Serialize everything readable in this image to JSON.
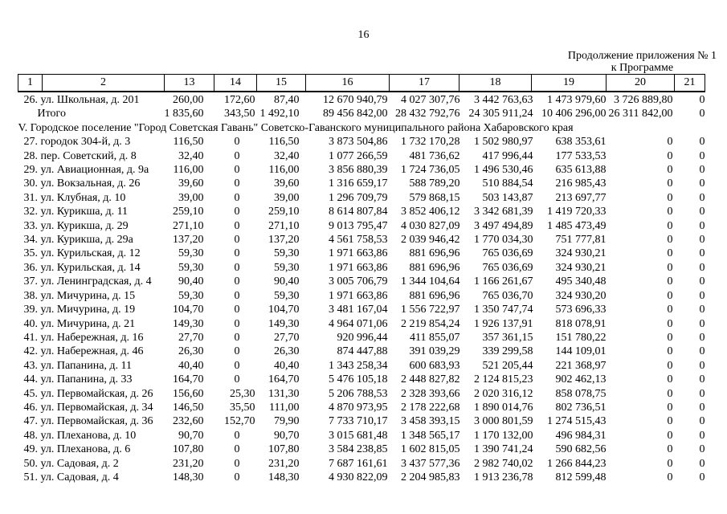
{
  "page": {
    "number": "16",
    "continuation_line1": "Продолжение приложения № 1",
    "continuation_line2": "к Программе"
  },
  "table": {
    "header": [
      "1",
      "2",
      "13",
      "14",
      "15",
      "16",
      "17",
      "18",
      "19",
      "20",
      "21"
    ],
    "rows": [
      {
        "label": "26. ул. Школьная, д. 201",
        "values": [
          "260,00",
          "172,60",
          "87,40",
          "12 670 940,79",
          "4 027 307,76",
          "3 442 763,63",
          "1 473 979,60",
          "3 726 889,80",
          "0"
        ]
      },
      {
        "label": "Итого",
        "indent": true,
        "values": [
          "1 835,60",
          "343,50",
          "1 492,10",
          "89 456 842,00",
          "28 432 792,76",
          "24 305 911,24",
          "10 406 296,00",
          "26 311 842,00",
          "0"
        ]
      },
      {
        "section": "V. Городское поселение \"Город Советская Гавань\" Советско-Гаванского муниципального района Хабаровского края"
      },
      {
        "label": "27. городок 304-й, д. 3",
        "values": [
          "116,50",
          "0",
          "116,50",
          "3 873 504,86",
          "1 732 170,28",
          "1 502 980,97",
          "638 353,61",
          "0",
          "0"
        ]
      },
      {
        "label": "28. пер. Советский, д. 8",
        "values": [
          "32,40",
          "0",
          "32,40",
          "1 077 266,59",
          "481 736,62",
          "417 996,44",
          "177 533,53",
          "0",
          "0"
        ]
      },
      {
        "label": "29. ул. Авиационная, д. 9а",
        "values": [
          "116,00",
          "0",
          "116,00",
          "3 856 880,39",
          "1 724 736,05",
          "1 496 530,46",
          "635 613,88",
          "0",
          "0"
        ]
      },
      {
        "label": "30. ул. Вокзальная, д. 26",
        "values": [
          "39,60",
          "0",
          "39,60",
          "1 316 659,17",
          "588 789,20",
          "510 884,54",
          "216 985,43",
          "0",
          "0"
        ]
      },
      {
        "label": "31. ул. Клубная, д. 10",
        "values": [
          "39,00",
          "0",
          "39,00",
          "1 296 709,79",
          "579 868,15",
          "503 143,87",
          "213 697,77",
          "0",
          "0"
        ]
      },
      {
        "label": "32. ул. Курикша, д. 11",
        "values": [
          "259,10",
          "0",
          "259,10",
          "8 614 807,84",
          "3 852 406,12",
          "3 342 681,39",
          "1 419 720,33",
          "0",
          "0"
        ]
      },
      {
        "label": "33. ул. Курикша, д. 29",
        "values": [
          "271,10",
          "0",
          "271,10",
          "9 013 795,47",
          "4 030 827,09",
          "3 497 494,89",
          "1 485 473,49",
          "0",
          "0"
        ]
      },
      {
        "label": "34. ул. Курикша, д. 29а",
        "values": [
          "137,20",
          "0",
          "137,20",
          "4 561 758,53",
          "2 039 946,42",
          "1 770 034,30",
          "751 777,81",
          "0",
          "0"
        ]
      },
      {
        "label": "35. ул. Курильская, д. 12",
        "values": [
          "59,30",
          "0",
          "59,30",
          "1 971 663,86",
          "881 696,96",
          "765 036,69",
          "324 930,21",
          "0",
          "0"
        ]
      },
      {
        "label": "36. ул. Курильская, д. 14",
        "values": [
          "59,30",
          "0",
          "59,30",
          "1 971 663,86",
          "881 696,96",
          "765 036,69",
          "324 930,21",
          "0",
          "0"
        ]
      },
      {
        "label": "37. ул. Ленинградская, д. 4",
        "values": [
          "90,40",
          "0",
          "90,40",
          "3 005 706,79",
          "1 344 104,64",
          "1 166 261,67",
          "495 340,48",
          "0",
          "0"
        ]
      },
      {
        "label": "38. ул. Мичурина, д. 15",
        "values": [
          "59,30",
          "0",
          "59,30",
          "1 971 663,86",
          "881 696,96",
          "765 036,70",
          "324 930,20",
          "0",
          "0"
        ]
      },
      {
        "label": "39. ул. Мичурина, д. 19",
        "values": [
          "104,70",
          "0",
          "104,70",
          "3 481 167,04",
          "1 556 722,97",
          "1 350 747,74",
          "573 696,33",
          "0",
          "0"
        ]
      },
      {
        "label": "40. ул. Мичурина, д. 21",
        "values": [
          "149,30",
          "0",
          "149,30",
          "4 964 071,06",
          "2 219 854,24",
          "1 926 137,91",
          "818 078,91",
          "0",
          "0"
        ]
      },
      {
        "label": "41. ул. Набережная, д. 16",
        "values": [
          "27,70",
          "0",
          "27,70",
          "920 996,44",
          "411 855,07",
          "357 361,15",
          "151 780,22",
          "0",
          "0"
        ]
      },
      {
        "label": "42. ул. Набережная, д. 46",
        "values": [
          "26,30",
          "0",
          "26,30",
          "874 447,88",
          "391 039,29",
          "339 299,58",
          "144 109,01",
          "0",
          "0"
        ]
      },
      {
        "label": "43. ул. Папанина, д. 11",
        "values": [
          "40,40",
          "0",
          "40,40",
          "1 343 258,34",
          "600 683,93",
          "521 205,44",
          "221 368,97",
          "0",
          "0"
        ]
      },
      {
        "label": "44. ул. Папанина, д. 33",
        "values": [
          "164,70",
          "0",
          "164,70",
          "5 476 105,18",
          "2 448 827,82",
          "2 124 815,23",
          "902 462,13",
          "0",
          "0"
        ]
      },
      {
        "label": "45. ул. Первомайская, д. 26",
        "values": [
          "156,60",
          "25,30",
          "131,30",
          "5 206 788,53",
          "2 328 393,66",
          "2 020 316,12",
          "858 078,75",
          "0",
          "0"
        ]
      },
      {
        "label": "46. ул. Первомайская, д. 34",
        "values": [
          "146,50",
          "35,50",
          "111,00",
          "4 870 973,95",
          "2 178 222,68",
          "1 890 014,76",
          "802 736,51",
          "0",
          "0"
        ]
      },
      {
        "label": "47. ул. Первомайская, д. 36",
        "values": [
          "232,60",
          "152,70",
          "79,90",
          "7 733 710,17",
          "3 458 393,15",
          "3 000 801,59",
          "1 274 515,43",
          "0",
          "0"
        ]
      },
      {
        "label": "48. ул. Плеханова, д. 10",
        "values": [
          "90,70",
          "0",
          "90,70",
          "3 015 681,48",
          "1 348 565,17",
          "1 170 132,00",
          "496 984,31",
          "0",
          "0"
        ]
      },
      {
        "label": "49. ул. Плеханова, д. 6",
        "values": [
          "107,80",
          "0",
          "107,80",
          "3 584 238,85",
          "1 602 815,05",
          "1 390 741,24",
          "590 682,56",
          "0",
          "0"
        ]
      },
      {
        "label": "50. ул. Садовая, д. 2",
        "values": [
          "231,20",
          "0",
          "231,20",
          "7 687 161,61",
          "3 437 577,36",
          "2 982 740,02",
          "1 266 844,23",
          "0",
          "0"
        ]
      },
      {
        "label": "51. ул. Садовая, д. 4",
        "values": [
          "148,30",
          "0",
          "148,30",
          "4 930 822,09",
          "2 204 985,83",
          "1 913 236,78",
          "812 599,48",
          "0",
          "0"
        ]
      }
    ]
  }
}
